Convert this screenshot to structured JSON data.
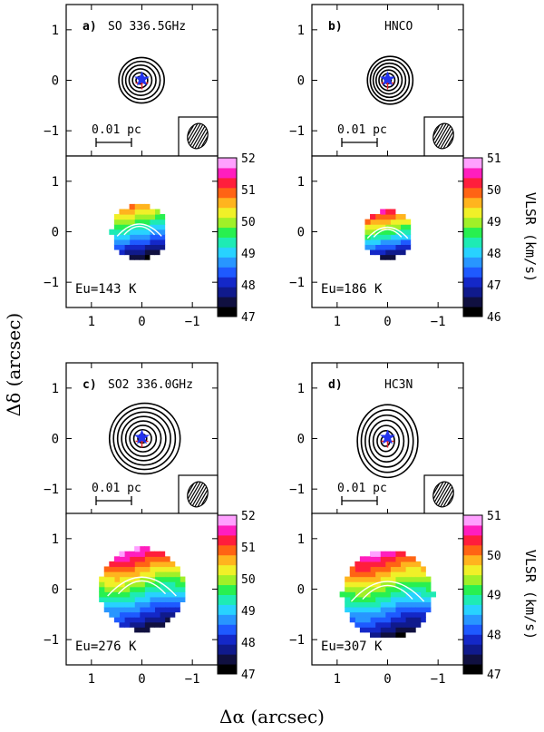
{
  "figure": {
    "ylabel": "Δδ (arcsec)",
    "xlabel": "Δα (arcsec)",
    "scale_bar_label": "0.01 pc"
  },
  "chart_data": [
    {
      "id": "a",
      "tag": "a)",
      "title": "SO 336.5GHz",
      "type": "contour+heatmap",
      "xlim": [
        1.5,
        -1.5
      ],
      "ylim": [
        -1.5,
        1.5
      ],
      "xticks": [
        1,
        0,
        -1
      ],
      "yticks": [
        1,
        0,
        -1
      ],
      "energy_label": "Eu=143 K",
      "colorbar": {
        "label": "VLSR (km/s)",
        "min": 47,
        "max": 52,
        "ticks": [
          47,
          48,
          49,
          50,
          51,
          52
        ]
      },
      "contour": {
        "center": [
          0.05,
          0.0
        ],
        "levels": 6,
        "max_radius_arcsec": 0.45,
        "elongation": 1.0
      },
      "velocity_field": {
        "center": [
          0.05,
          0.0
        ],
        "radius": 0.55,
        "gradient_dir": "south-to-north",
        "vmin_region": 47.2,
        "vmax_region": 50.8
      }
    },
    {
      "id": "b",
      "tag": "b)",
      "title": "HNCO",
      "type": "contour+heatmap",
      "xlim": [
        1.5,
        -1.5
      ],
      "ylim": [
        -1.5,
        1.5
      ],
      "xticks": [
        1,
        0,
        -1
      ],
      "yticks": [
        1,
        0,
        -1
      ],
      "energy_label": "Eu=186 K",
      "colorbar": {
        "label": "VLSR (km/s)",
        "min": 46,
        "max": 51,
        "ticks": [
          46,
          47,
          48,
          49,
          50,
          51
        ]
      },
      "contour": {
        "center": [
          0.0,
          0.0
        ],
        "levels": 7,
        "max_radius_arcsec": 0.45,
        "elongation": 1.05
      },
      "velocity_field": {
        "center": [
          0.0,
          -0.05
        ],
        "radius": 0.5,
        "gradient_dir": "south-to-north",
        "vmin_region": 46.3,
        "vmax_region": 50.5
      }
    },
    {
      "id": "c",
      "tag": "c)",
      "title": "SO2 336.0GHz",
      "type": "contour+heatmap",
      "xlim": [
        1.5,
        -1.5
      ],
      "ylim": [
        -1.5,
        1.5
      ],
      "xticks": [
        1,
        0,
        -1
      ],
      "yticks": [
        1,
        0,
        -1
      ],
      "energy_label": "Eu=276 K",
      "colorbar": {
        "label": "VLSR (km/s)",
        "min": 47,
        "max": 52,
        "ticks": [
          47,
          48,
          49,
          50,
          51,
          52
        ]
      },
      "contour": {
        "center": [
          0.0,
          0.0
        ],
        "levels": 8,
        "max_radius_arcsec": 0.7,
        "elongation": 1.0
      },
      "velocity_field": {
        "center": [
          0.0,
          0.0
        ],
        "radius": 0.85,
        "gradient_dir": "south-to-north",
        "vmin_region": 47.3,
        "vmax_region": 51.8
      }
    },
    {
      "id": "d",
      "tag": "d)",
      "title": "HC3N",
      "type": "contour+heatmap",
      "xlim": [
        1.5,
        -1.5
      ],
      "ylim": [
        -1.5,
        1.5
      ],
      "xticks": [
        1,
        0,
        -1
      ],
      "yticks": [
        1,
        0,
        -1
      ],
      "energy_label": "Eu=307 K",
      "colorbar": {
        "label": "VLSR (km/s)",
        "min": 47,
        "max": 51,
        "ticks": [
          47,
          48,
          49,
          50,
          51
        ]
      },
      "contour": {
        "center": [
          0.05,
          -0.05
        ],
        "levels": 7,
        "max_radius_arcsec": 0.6,
        "elongation": 1.2
      },
      "velocity_field": {
        "center": [
          0.0,
          -0.1
        ],
        "radius": 0.9,
        "gradient_dir": "south-to-north",
        "vmin_region": 47.2,
        "vmax_region": 50.8
      }
    }
  ],
  "colors": {
    "star": "#2233ee",
    "cross": "#e0202a",
    "contour": "#000000",
    "colormap": [
      "#000000",
      "#101040",
      "#101a8c",
      "#1428c8",
      "#1e5aff",
      "#2896ff",
      "#28d2ff",
      "#1eebb4",
      "#28f050",
      "#a0f028",
      "#f0f028",
      "#ffb41e",
      "#ff6414",
      "#ff1e3c",
      "#ff1ebe",
      "#ffa0ff"
    ]
  }
}
